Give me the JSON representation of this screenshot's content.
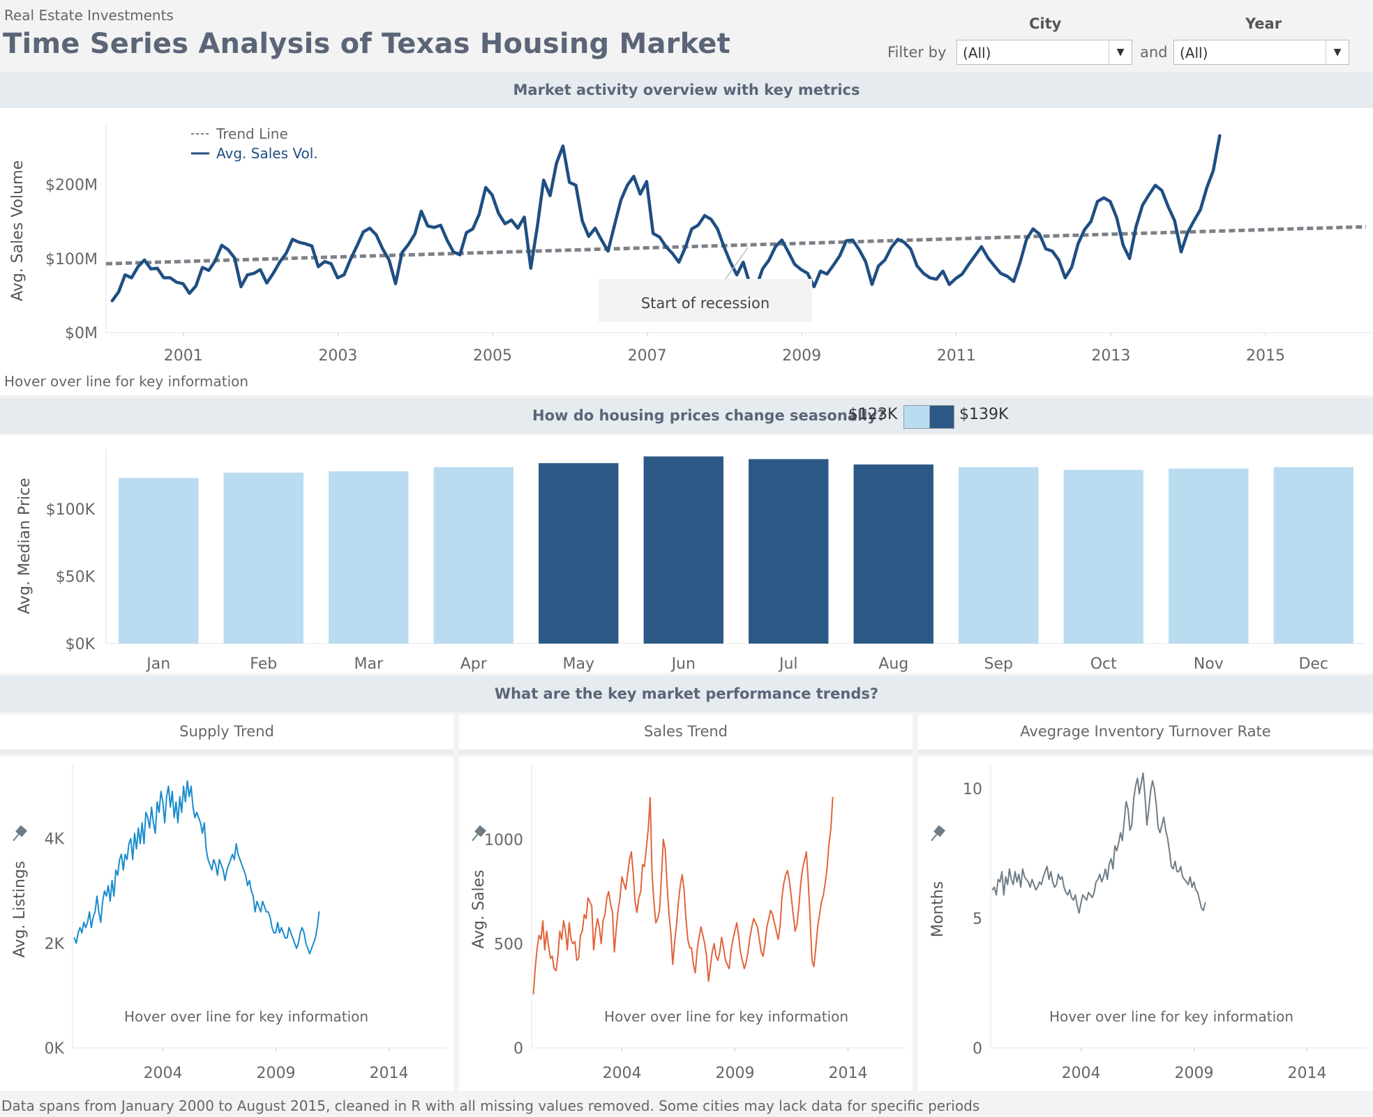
{
  "header": {
    "subtitle": "Real Estate Investments",
    "title": "Time Series Analysis of Texas Housing Market"
  },
  "filters": {
    "filter_by_label": "Filter by",
    "and_label": "and",
    "city": {
      "title": "City",
      "value": "(All)"
    },
    "year": {
      "title": "Year",
      "value": "(All)"
    }
  },
  "sections": {
    "overview_title": "Market activity overview with key metrics",
    "seasonal_title": "How do housing prices change seasonally?",
    "seasonal_legend_low": "$123K",
    "seasonal_legend_high": "$139K",
    "trends_title": "What are the key market performance trends?"
  },
  "notes": {
    "hover_overview": "Hover over line for key information",
    "hover_supply": "Hover over line for key information",
    "hover_sales": "Hover over line for key information",
    "hover_turnover": "Hover over line for key information",
    "footer": "Data spans from January 2000 to August 2015, cleaned in R with all missing values removed. Some cities may lack data for specific periods"
  },
  "colors": {
    "sales_line": "#1f4e82",
    "trend_line": "#7d8087",
    "bar_light": "#b9dcf0",
    "bar_dark": "#2c5885",
    "supply_line": "#1a8ccc",
    "sales_small_line": "#e2643a",
    "turnover_line": "#6f7c86"
  },
  "chart_data": [
    {
      "id": "overview",
      "type": "line",
      "ylabel": "Avg. Sales Volume",
      "ylim": [
        0,
        275
      ],
      "y_ticks": [
        "$0M",
        "$100M",
        "$200M"
      ],
      "x_ticks": [
        "2001",
        "2003",
        "2005",
        "2007",
        "2009",
        "2011",
        "2013",
        "2015"
      ],
      "xlim": [
        2000,
        2016.3
      ],
      "legend": [
        "Trend Line",
        "Avg. Sales Vol."
      ],
      "annotation": "Start of recession",
      "trend_line": {
        "x": [
          2000,
          2016.3
        ],
        "y": [
          93,
          143
        ]
      },
      "series": [
        {
          "name": "Avg. Sales Vol.",
          "x_start": 2000.08,
          "x_step": 0.0833,
          "values": [
            43,
            55,
            78,
            74,
            89,
            98,
            86,
            87,
            74,
            74,
            68,
            66,
            53,
            63,
            88,
            84,
            97,
            118,
            112,
            101,
            62,
            78,
            80,
            85,
            67,
            80,
            95,
            107,
            126,
            122,
            120,
            117,
            89,
            96,
            93,
            74,
            78,
            99,
            117,
            136,
            141,
            132,
            113,
            98,
            66,
            108,
            119,
            133,
            164,
            144,
            142,
            145,
            125,
            109,
            105,
            135,
            140,
            160,
            196,
            186,
            161,
            147,
            152,
            141,
            156,
            87,
            142,
            206,
            185,
            229,
            252,
            203,
            199,
            151,
            130,
            141,
            125,
            110,
            145,
            179,
            199,
            211,
            187,
            204,
            134,
            129,
            116,
            107,
            95,
            115,
            140,
            145,
            158,
            153,
            140,
            116,
            95,
            78,
            95,
            66,
            61,
            86,
            98,
            116,
            125,
            109,
            92,
            85,
            80,
            62,
            83,
            79,
            91,
            104,
            124,
            125,
            112,
            96,
            65,
            90,
            98,
            115,
            126,
            122,
            113,
            90,
            80,
            74,
            72,
            83,
            65,
            73,
            79,
            92,
            104,
            116,
            101,
            90,
            80,
            76,
            69,
            95,
            126,
            140,
            133,
            113,
            110,
            98,
            74,
            88,
            120,
            139,
            150,
            177,
            182,
            177,
            155,
            118,
            100,
            143,
            172,
            186,
            199,
            192,
            170,
            151,
            109,
            135,
            151,
            166,
            196,
            219,
            266
          ]
        }
      ]
    },
    {
      "id": "seasonal",
      "type": "bar",
      "ylabel": "Avg. Median Price",
      "ylim": [
        0,
        145
      ],
      "y_ticks": [
        "$0K",
        "$50K",
        "$100K"
      ],
      "categories": [
        "Jan",
        "Feb",
        "Mar",
        "Apr",
        "May",
        "Jun",
        "Jul",
        "Aug",
        "Sep",
        "Oct",
        "Nov",
        "Dec"
      ],
      "values": [
        123,
        127,
        128,
        131,
        134,
        139,
        137,
        133,
        131,
        129,
        130,
        131
      ],
      "highlight": [
        false,
        false,
        false,
        false,
        true,
        true,
        true,
        true,
        false,
        false,
        false,
        false
      ]
    },
    {
      "id": "supply",
      "type": "line",
      "title": "Supply Trend",
      "ylabel": "Avg. Listings",
      "ylim": [
        0,
        5.3
      ],
      "y_ticks": [
        "0K",
        "2K",
        "4K"
      ],
      "x_ticks": [
        "2004",
        "2009",
        "2014"
      ],
      "xlim": [
        2000,
        2016.3
      ],
      "series": [
        {
          "name": "Avg. Listings",
          "x_start": 2000.08,
          "x_step": 0.0833,
          "values": [
            2.1,
            2.0,
            2.2,
            2.3,
            2.2,
            2.4,
            2.3,
            2.4,
            2.6,
            2.3,
            2.5,
            2.6,
            2.9,
            2.6,
            2.4,
            2.8,
            3.0,
            2.9,
            3.1,
            2.8,
            3.2,
            2.9,
            3.4,
            3.3,
            3.6,
            3.7,
            3.4,
            3.7,
            3.6,
            3.9,
            4.0,
            3.6,
            4.1,
            3.8,
            4.2,
            3.9,
            4.3,
            3.9,
            4.5,
            4.4,
            4.2,
            4.6,
            4.3,
            4.1,
            4.7,
            4.5,
            4.9,
            4.7,
            4.3,
            4.8,
            5.0,
            4.6,
            4.9,
            4.4,
            4.7,
            4.3,
            4.8,
            4.5,
            5.0,
            4.7,
            5.1,
            4.8,
            5.0,
            4.6,
            4.4,
            4.5,
            4.4,
            4.3,
            4.1,
            4.3,
            3.8,
            3.6,
            3.5,
            3.4,
            3.6,
            3.5,
            3.3,
            3.6,
            3.5,
            3.4,
            3.2,
            3.4,
            3.5,
            3.6,
            3.7,
            3.6,
            3.9,
            3.7,
            3.6,
            3.5,
            3.4,
            3.3,
            3.1,
            3.2,
            3.0,
            2.9,
            2.6,
            2.8,
            2.7,
            2.6,
            2.8,
            2.7,
            2.6,
            2.6,
            2.5,
            2.3,
            2.2,
            2.2,
            2.4,
            2.2,
            2.3,
            2.2,
            2.1,
            2.1,
            2.3,
            2.2,
            2.1,
            2.0,
            1.9,
            2.0,
            2.2,
            2.3,
            2.2,
            2.0,
            1.9,
            1.8,
            1.9,
            2.0,
            2.1,
            2.3,
            2.6
          ]
        }
      ]
    },
    {
      "id": "sales",
      "type": "line",
      "title": "Sales Trend",
      "ylabel": "Avg. Sales",
      "ylim": [
        0,
        1330
      ],
      "y_ticks": [
        "0",
        "500",
        "1000"
      ],
      "x_ticks": [
        "2004",
        "2009",
        "2014"
      ],
      "xlim": [
        2000,
        2016.3
      ],
      "series": [
        {
          "name": "Avg. Sales",
          "x_start": 2000.08,
          "x_step": 0.0833,
          "values": [
            260,
            390,
            480,
            540,
            520,
            610,
            470,
            560,
            490,
            430,
            440,
            380,
            370,
            440,
            560,
            520,
            610,
            560,
            470,
            600,
            520,
            500,
            510,
            420,
            430,
            540,
            560,
            640,
            620,
            720,
            700,
            680,
            470,
            560,
            620,
            580,
            500,
            610,
            640,
            720,
            750,
            690,
            650,
            460,
            570,
            660,
            720,
            820,
            790,
            760,
            830,
            900,
            940,
            840,
            700,
            650,
            720,
            750,
            880,
            870,
            960,
            1050,
            1200,
            840,
            700,
            600,
            620,
            660,
            820,
            1000,
            950,
            780,
            640,
            550,
            400,
            510,
            590,
            700,
            780,
            830,
            760,
            620,
            520,
            480,
            480,
            400,
            360,
            470,
            530,
            580,
            540,
            500,
            440,
            320,
            390,
            460,
            500,
            440,
            420,
            460,
            530,
            480,
            420,
            400,
            380,
            470,
            520,
            560,
            600,
            540,
            460,
            420,
            380,
            410,
            460,
            530,
            580,
            620,
            600,
            580,
            520,
            460,
            440,
            500,
            580,
            620,
            660,
            640,
            600,
            560,
            520,
            580,
            720,
            790,
            830,
            850,
            800,
            720,
            640,
            560,
            590,
            680,
            790,
            860,
            900,
            940,
            800,
            620,
            420,
            390,
            480,
            580,
            640,
            700,
            730,
            790,
            860,
            980,
            1050,
            1200
          ]
        }
      ]
    },
    {
      "id": "turnover",
      "type": "line",
      "title": "Avegrage Inventory Turnover Rate",
      "ylabel": "Months",
      "ylim": [
        0,
        10.7
      ],
      "y_ticks": [
        "0",
        "5",
        "10"
      ],
      "x_ticks": [
        "2004",
        "2009",
        "2014"
      ],
      "xlim": [
        2000,
        2016.3
      ],
      "series": [
        {
          "name": "Months",
          "x_start": 2000.08,
          "x_step": 0.0833,
          "values": [
            6.1,
            6.2,
            5.9,
            6.5,
            6.4,
            6.8,
            5.9,
            6.6,
            6.3,
            6.9,
            6.5,
            6.3,
            6.8,
            6.4,
            6.7,
            6.2,
            6.9,
            6.6,
            6.5,
            6.4,
            6.2,
            6.5,
            6.3,
            6.1,
            6.2,
            6.4,
            6.3,
            6.6,
            6.8,
            7.0,
            6.5,
            6.8,
            6.4,
            6.2,
            6.3,
            6.7,
            6.5,
            6.6,
            6.2,
            6.0,
            5.9,
            6.1,
            5.8,
            5.7,
            5.9,
            5.5,
            5.2,
            5.6,
            5.9,
            5.8,
            5.7,
            6.0,
            5.9,
            5.8,
            6.0,
            6.4,
            6.5,
            6.7,
            6.4,
            6.6,
            6.9,
            6.5,
            7.1,
            7.3,
            6.9,
            7.8,
            7.6,
            7.9,
            8.3,
            8.0,
            8.8,
            9.5,
            9.2,
            8.4,
            8.6,
            9.6,
            10.1,
            10.4,
            9.8,
            10.2,
            10.6,
            9.7,
            8.6,
            9.2,
            9.9,
            10.3,
            10.0,
            9.4,
            8.5,
            8.3,
            8.6,
            8.9,
            8.4,
            8.1,
            7.6,
            7.0,
            6.9,
            7.2,
            6.8,
            6.8,
            7.0,
            6.6,
            6.5,
            6.4,
            6.3,
            6.6,
            6.2,
            6.4,
            6.1,
            6.0,
            5.7,
            5.4,
            5.3,
            5.6
          ]
        }
      ]
    }
  ]
}
